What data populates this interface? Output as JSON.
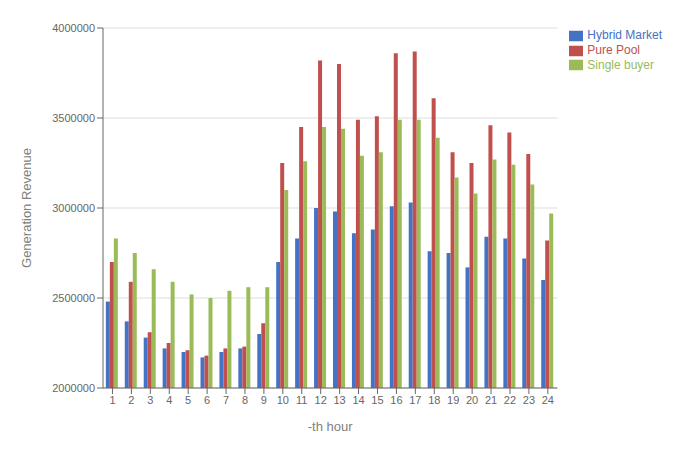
{
  "chart_data": {
    "type": "bar",
    "categories": [
      "1",
      "2",
      "3",
      "4",
      "5",
      "6",
      "7",
      "8",
      "9",
      "10",
      "11",
      "12",
      "13",
      "14",
      "15",
      "16",
      "17",
      "18",
      "19",
      "20",
      "21",
      "22",
      "23",
      "24"
    ],
    "series": [
      {
        "name": "Hybrid Market",
        "color": "#4472c4",
        "values": [
          2480000,
          2370000,
          2280000,
          2220000,
          2200000,
          2170000,
          2200000,
          2220000,
          2300000,
          2700000,
          2830000,
          3000000,
          2980000,
          2860000,
          2880000,
          3010000,
          3030000,
          2760000,
          2750000,
          2670000,
          2840000,
          2830000,
          2720000,
          2600000
        ]
      },
      {
        "name": "Pure Pool",
        "color": "#c0504d",
        "values": [
          2700000,
          2590000,
          2310000,
          2250000,
          2210000,
          2180000,
          2220000,
          2230000,
          2360000,
          3250000,
          3450000,
          3820000,
          3800000,
          3490000,
          3510000,
          3860000,
          3870000,
          3610000,
          3310000,
          3250000,
          3460000,
          3420000,
          3300000,
          2820000
        ]
      },
      {
        "name": "Single buyer",
        "color": "#9bbb59",
        "values": [
          2830000,
          2750000,
          2660000,
          2590000,
          2520000,
          2500000,
          2540000,
          2560000,
          2560000,
          3100000,
          3260000,
          3450000,
          3440000,
          3290000,
          3310000,
          3490000,
          3490000,
          3390000,
          3170000,
          3080000,
          3270000,
          3240000,
          3130000,
          2970000
        ]
      }
    ],
    "xlabel": "-th hour",
    "ylabel": "Generation Revenue",
    "ylim": [
      2000000,
      4000000
    ],
    "yticks": [
      2000000,
      2500000,
      3000000,
      3500000,
      4000000
    ],
    "grid": true,
    "legend": "upper right"
  }
}
